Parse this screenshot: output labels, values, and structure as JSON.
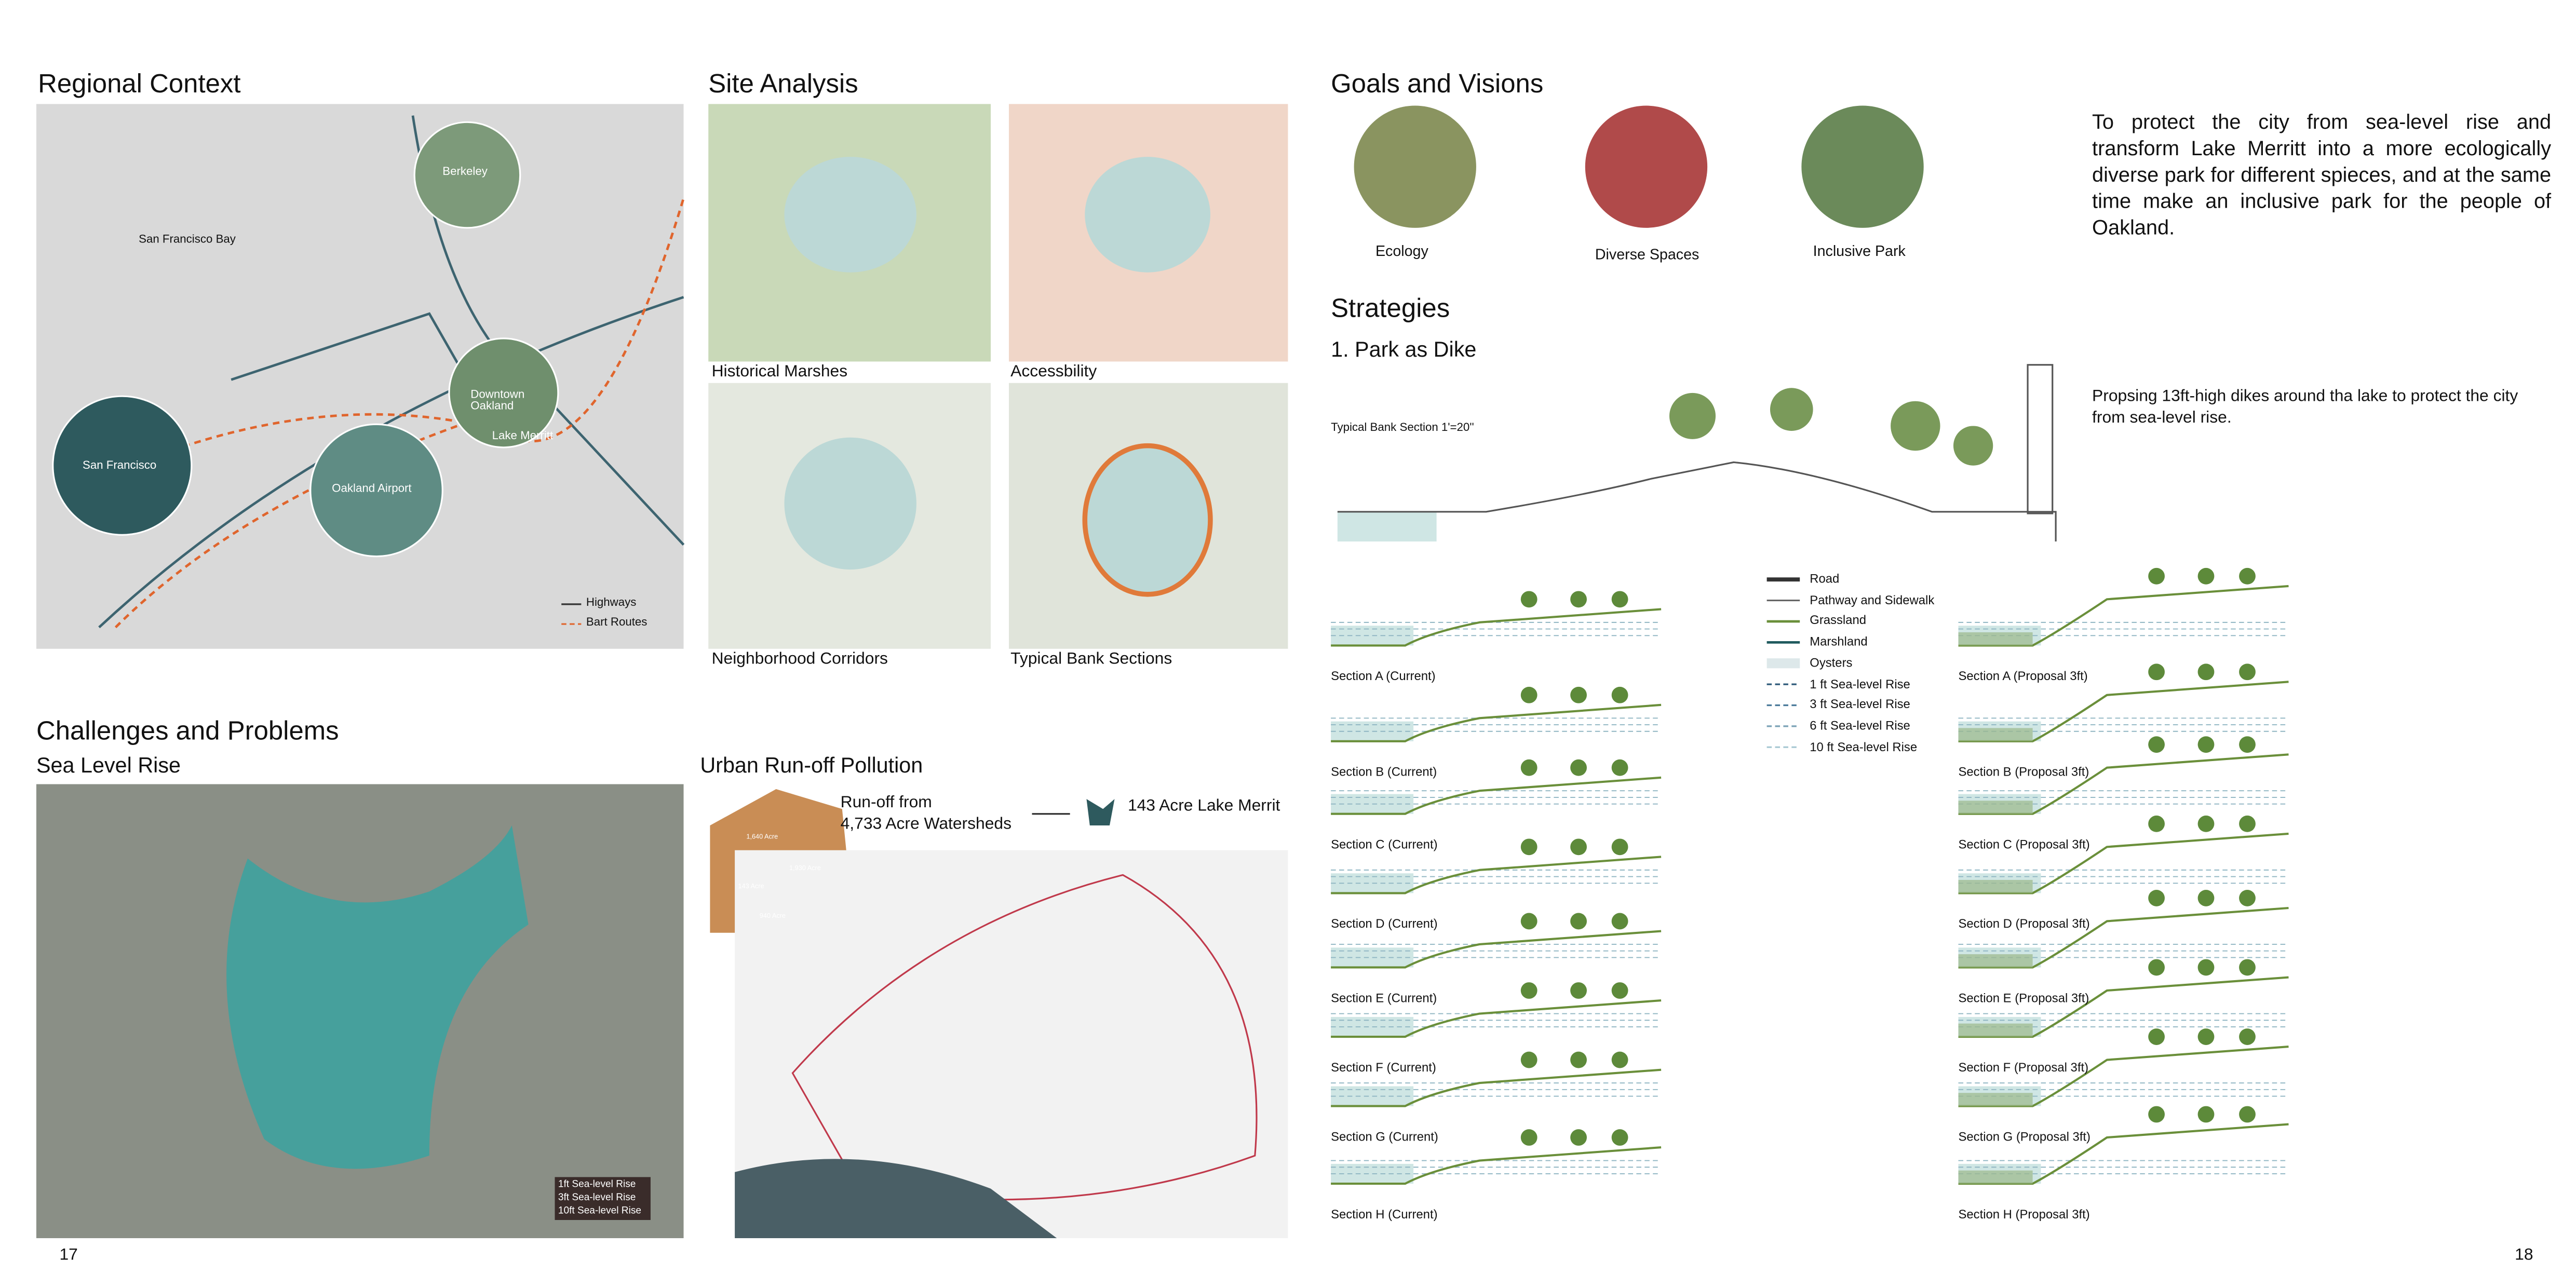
{
  "page_numbers": [
    "17",
    "18"
  ],
  "regional_context": {
    "title": "Regional Context",
    "labels": [
      "San Francisco Bay",
      "Berkeley",
      "Downtown Oakland",
      "Lake Merritt",
      "San Francisco",
      "Oakland Airport"
    ],
    "legend": [
      "Highways",
      "Bart Routes"
    ]
  },
  "site_analysis": {
    "title": "Site Analysis",
    "maps": [
      "Historical Marshes",
      "Accessbility",
      "Neighborhood Corridors",
      "Typical Bank Sections"
    ]
  },
  "challenges": {
    "title": "Challenges and Problems",
    "subtitle": "Sea Level Rise",
    "rise_labels": [
      "1ft Sea-level Rise",
      "3ft Sea-level Rise",
      "10ft Sea-level Rise"
    ]
  },
  "runoff": {
    "title": "Urban Run-off Pollution",
    "source_lines": [
      "Run-off from",
      "4,733 Acre Watersheds"
    ],
    "target": "143 Acre Lake Merrit",
    "areas": [
      "1,640 Acre",
      "1,930 Acre",
      "143 Acre",
      "940 Acre"
    ]
  },
  "goals": {
    "title": "Goals and Visions",
    "items": [
      "Ecology",
      "Diverse Spaces",
      "Inclusive Park"
    ],
    "statement": "To protect the city from sea-level rise and transform Lake Merritt into a more ecologically diverse park for different spieces, and at the same time make an inclusive park for the people of Oakland."
  },
  "strategies": {
    "title": "Strategies",
    "subtitle": "1. Park as Dike",
    "section_title": "Typical Bank Section 1'=20''",
    "description": "Propsing 13ft-high dikes around tha lake to protect the city from  sea-level rise.",
    "legend": [
      "Road",
      "Pathway and Sidewalk",
      "Grassland",
      "Marshland",
      "Oysters",
      "1 ft Sea-level Rise",
      "3 ft Sea-level Rise",
      "6 ft Sea-level Rise",
      "10 ft Sea-level Rise"
    ],
    "sections": [
      {
        "current": "Section A (Current)",
        "proposal": "Section A (Proposal 3ft)"
      },
      {
        "current": "Section B (Current)",
        "proposal": "Section B (Proposal 3ft)"
      },
      {
        "current": "Section C (Current)",
        "proposal": "Section C (Proposal 3ft)"
      },
      {
        "current": "Section D (Current)",
        "proposal": "Section D (Proposal 3ft)"
      },
      {
        "current": "Section E (Current)",
        "proposal": "Section E (Proposal 3ft)"
      },
      {
        "current": "Section F (Current)",
        "proposal": "Section F (Proposal 3ft)"
      },
      {
        "current": "Section G (Current)",
        "proposal": "Section G (Proposal 3ft)"
      },
      {
        "current": "Section H (Current)",
        "proposal": "Section H (Proposal 3ft)"
      }
    ]
  }
}
